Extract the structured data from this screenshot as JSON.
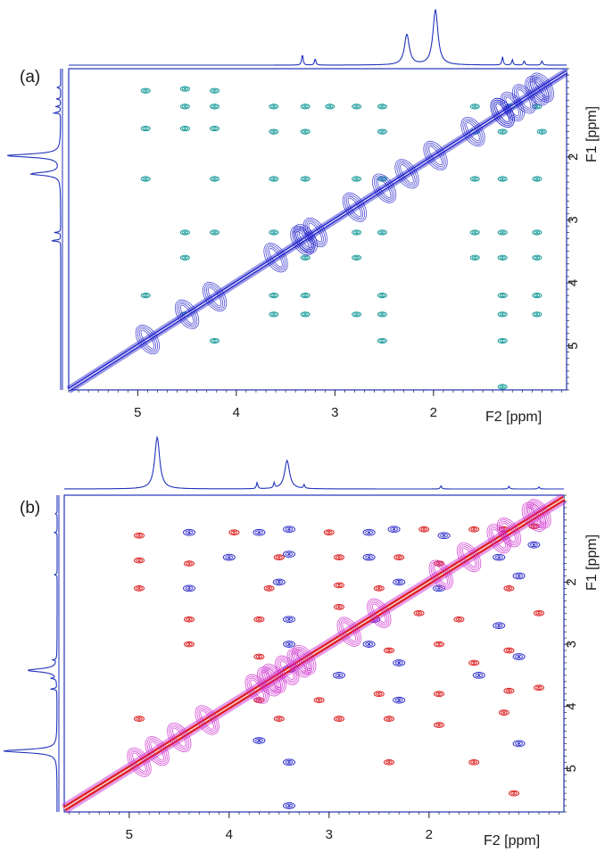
{
  "chart_data": [
    {
      "type": "heatmap",
      "panel_label": "(a)",
      "xlabel": "F2 [ppm]",
      "ylabel": "F1 [ppm]",
      "xlim": [
        5.7,
        0.65
      ],
      "ylim": [
        0.6,
        5.7
      ],
      "x_reversed": true,
      "x_ticks": [
        "5",
        "4",
        "3",
        "2"
      ],
      "x_tick_values": [
        5,
        4,
        3,
        2
      ],
      "y_ticks": [
        "2",
        "3",
        "4",
        "5"
      ],
      "y_tick_values": [
        2,
        3,
        4,
        5
      ],
      "grid": false,
      "legend": "none",
      "colors": {
        "diagonal": "#2222cc",
        "cross": "#1a9a9a",
        "projection": "#2233bb"
      },
      "projection_peaks": [
        {
          "ppm": 2.27,
          "intensity": 0.55
        },
        {
          "ppm": 1.98,
          "intensity": 1.0
        },
        {
          "ppm": 3.33,
          "intensity": 0.2
        },
        {
          "ppm": 3.2,
          "intensity": 0.12
        },
        {
          "ppm": 1.3,
          "intensity": 0.15
        },
        {
          "ppm": 1.2,
          "intensity": 0.1
        },
        {
          "ppm": 1.08,
          "intensity": 0.08
        },
        {
          "ppm": 0.9,
          "intensity": 0.08
        }
      ],
      "cross_peaks": [
        [
          4.92,
          0.95
        ],
        [
          4.52,
          0.92
        ],
        [
          4.22,
          0.95
        ],
        [
          4.52,
          1.2
        ],
        [
          4.22,
          1.2
        ],
        [
          3.62,
          1.2
        ],
        [
          3.3,
          1.2
        ],
        [
          3.05,
          1.2
        ],
        [
          2.78,
          1.2
        ],
        [
          2.52,
          1.2
        ],
        [
          1.58,
          1.2
        ],
        [
          1.22,
          1.2
        ],
        [
          0.95,
          1.2
        ],
        [
          4.92,
          1.55
        ],
        [
          4.52,
          1.55
        ],
        [
          4.22,
          1.55
        ],
        [
          3.62,
          1.6
        ],
        [
          3.3,
          1.6
        ],
        [
          2.52,
          1.6
        ],
        [
          1.58,
          1.6
        ],
        [
          1.3,
          1.6
        ],
        [
          0.9,
          1.6
        ],
        [
          4.92,
          2.35
        ],
        [
          4.22,
          2.35
        ],
        [
          3.62,
          2.35
        ],
        [
          3.3,
          2.35
        ],
        [
          2.78,
          2.35
        ],
        [
          2.52,
          2.35
        ],
        [
          1.58,
          2.35
        ],
        [
          1.3,
          2.35
        ],
        [
          0.95,
          2.35
        ],
        [
          4.52,
          3.2
        ],
        [
          4.22,
          3.2
        ],
        [
          3.62,
          3.2
        ],
        [
          2.78,
          3.2
        ],
        [
          2.52,
          3.2
        ],
        [
          1.58,
          3.2
        ],
        [
          1.3,
          3.2
        ],
        [
          0.95,
          3.2
        ],
        [
          4.52,
          3.6
        ],
        [
          3.3,
          3.6
        ],
        [
          2.78,
          3.6
        ],
        [
          1.58,
          3.6
        ],
        [
          1.3,
          3.6
        ],
        [
          0.95,
          3.6
        ],
        [
          4.92,
          4.2
        ],
        [
          3.62,
          4.2
        ],
        [
          3.3,
          4.2
        ],
        [
          2.52,
          4.2
        ],
        [
          1.3,
          4.2
        ],
        [
          0.95,
          4.2
        ],
        [
          4.52,
          4.5
        ],
        [
          3.62,
          4.5
        ],
        [
          3.3,
          4.5
        ],
        [
          2.78,
          4.5
        ],
        [
          2.52,
          4.5
        ],
        [
          1.3,
          4.5
        ],
        [
          0.95,
          4.5
        ],
        [
          4.22,
          4.92
        ],
        [
          2.52,
          4.92
        ],
        [
          1.3,
          4.92
        ],
        [
          1.3,
          5.65
        ]
      ]
    },
    {
      "type": "heatmap",
      "panel_label": "(b)",
      "xlabel": "F2 [ppm]",
      "ylabel": "F1 [ppm]",
      "xlim": [
        5.65,
        0.65
      ],
      "ylim": [
        0.6,
        5.7
      ],
      "x_reversed": true,
      "x_ticks": [
        "5",
        "4",
        "3",
        "2"
      ],
      "x_tick_values": [
        5,
        4,
        3,
        2
      ],
      "y_ticks": [
        "2",
        "3",
        "4",
        "5"
      ],
      "y_tick_values": [
        2,
        3,
        4,
        5
      ],
      "grid": false,
      "legend": "none",
      "colors": {
        "diagonal": "#dd2222",
        "positive": "#dd2222",
        "negative": "#3333cc",
        "minor": "#cc22cc",
        "cross": "#1a9a9a",
        "projection": "#2233bb"
      },
      "projection_peaks": [
        {
          "ppm": 4.72,
          "intensity": 1.0
        },
        {
          "ppm": 3.42,
          "intensity": 0.55
        },
        {
          "ppm": 3.72,
          "intensity": 0.12
        },
        {
          "ppm": 3.55,
          "intensity": 0.1
        },
        {
          "ppm": 3.25,
          "intensity": 0.07
        },
        {
          "ppm": 1.88,
          "intensity": 0.06
        },
        {
          "ppm": 1.2,
          "intensity": 0.05
        },
        {
          "ppm": 0.9,
          "intensity": 0.04
        }
      ],
      "cross_peaks_positive": [
        [
          4.9,
          1.25
        ],
        [
          3.95,
          1.2
        ],
        [
          3.0,
          1.2
        ],
        [
          2.05,
          1.15
        ],
        [
          1.55,
          1.15
        ],
        [
          1.25,
          1.15
        ],
        [
          0.95,
          1.1
        ],
        [
          4.9,
          1.65
        ],
        [
          4.4,
          1.7
        ],
        [
          3.5,
          1.6
        ],
        [
          2.9,
          1.6
        ],
        [
          2.3,
          1.6
        ],
        [
          1.9,
          1.7
        ],
        [
          4.9,
          2.1
        ],
        [
          3.6,
          2.1
        ],
        [
          2.9,
          2.05
        ],
        [
          2.5,
          2.1
        ],
        [
          1.2,
          2.1
        ],
        [
          4.4,
          2.6
        ],
        [
          3.7,
          2.6
        ],
        [
          2.9,
          2.4
        ],
        [
          2.1,
          2.5
        ],
        [
          1.7,
          2.6
        ],
        [
          0.9,
          2.5
        ],
        [
          4.4,
          3.0
        ],
        [
          3.7,
          3.2
        ],
        [
          2.4,
          3.1
        ],
        [
          1.9,
          3.0
        ],
        [
          1.55,
          3.3
        ],
        [
          1.2,
          3.1
        ],
        [
          3.7,
          3.9
        ],
        [
          3.1,
          3.9
        ],
        [
          2.5,
          3.8
        ],
        [
          1.9,
          3.8
        ],
        [
          1.2,
          3.75
        ],
        [
          0.9,
          3.7
        ],
        [
          3.5,
          4.2
        ],
        [
          2.9,
          4.2
        ],
        [
          2.4,
          4.2
        ],
        [
          1.9,
          4.3
        ],
        [
          1.25,
          4.1
        ],
        [
          4.9,
          4.2
        ],
        [
          2.4,
          4.9
        ],
        [
          1.55,
          4.9
        ],
        [
          1.15,
          5.4
        ]
      ],
      "cross_peaks_negative": [
        [
          4.4,
          1.2
        ],
        [
          3.7,
          1.2
        ],
        [
          3.4,
          1.15
        ],
        [
          2.6,
          1.2
        ],
        [
          2.35,
          1.15
        ],
        [
          1.85,
          1.25
        ],
        [
          0.95,
          1.4
        ],
        [
          4.0,
          1.6
        ],
        [
          3.4,
          1.55
        ],
        [
          2.6,
          1.6
        ],
        [
          1.3,
          1.6
        ],
        [
          4.4,
          2.1
        ],
        [
          3.5,
          2.0
        ],
        [
          2.3,
          2.0
        ],
        [
          1.9,
          2.1
        ],
        [
          1.1,
          1.9
        ],
        [
          3.4,
          2.6
        ],
        [
          2.55,
          2.6
        ],
        [
          1.3,
          2.7
        ],
        [
          3.4,
          3.0
        ],
        [
          2.6,
          3.0
        ],
        [
          2.3,
          3.3
        ],
        [
          1.5,
          3.5
        ],
        [
          1.1,
          3.2
        ],
        [
          3.4,
          3.4
        ],
        [
          2.9,
          3.5
        ],
        [
          2.3,
          3.9
        ],
        [
          3.7,
          4.55
        ],
        [
          3.4,
          4.9
        ],
        [
          3.4,
          5.6
        ],
        [
          1.1,
          4.6
        ]
      ]
    }
  ]
}
